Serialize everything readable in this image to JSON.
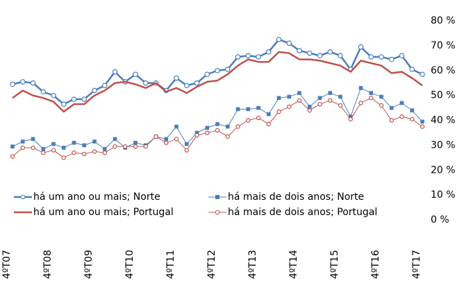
{
  "chart_data": {
    "type": "line",
    "categories": [
      "4ºT07",
      null,
      null,
      null,
      "4ºT08",
      null,
      null,
      null,
      "4ºT09",
      null,
      null,
      null,
      "4ºT10",
      null,
      null,
      null,
      "4ºT11",
      null,
      null,
      null,
      "4ºT12",
      null,
      null,
      null,
      "4ºT13",
      null,
      null,
      null,
      "4ºT14",
      null,
      null,
      null,
      "4ºT15",
      null,
      null,
      null,
      "4ºT16",
      null,
      null,
      null,
      "4ºT17"
    ],
    "series": [
      {
        "name": "há um ano ou mais; Norte",
        "color": "#4a7ebb",
        "marker": "circle",
        "line_width": 2.5,
        "values": [
          54.5,
          55.5,
          55,
          51.5,
          50,
          46.5,
          48.5,
          48.5,
          52,
          54,
          59.5,
          55.5,
          58.5,
          55,
          55,
          52,
          57,
          54,
          55,
          58.5,
          60,
          60.5,
          65.5,
          66,
          65.5,
          67.5,
          72.5,
          71,
          68,
          67,
          66,
          67.5,
          66,
          60.5,
          69.5,
          65.5,
          65.5,
          64.5,
          66,
          60.5,
          58.5
        ]
      },
      {
        "name": "há mais de dois anos; Norte",
        "color": "#4a7ebb",
        "marker": "square",
        "line_width": 1,
        "values": [
          29.5,
          31.5,
          32.5,
          28.5,
          30.5,
          29,
          31,
          30,
          31.5,
          28.5,
          32.5,
          29,
          31,
          30,
          33.5,
          32.5,
          37.5,
          30.5,
          35,
          37,
          38.5,
          37.5,
          44.5,
          44.5,
          45,
          42.5,
          49,
          49.5,
          51,
          45.5,
          49,
          51,
          49.5,
          41.5,
          53,
          51,
          49.5,
          45,
          47,
          44,
          39.5
        ]
      },
      {
        "name": "há um ano ou mais; Portugal",
        "color": "#c0504d",
        "marker": "none",
        "line_width": 2.5,
        "values": [
          49,
          52,
          50,
          49,
          47.5,
          43.5,
          46.5,
          46.5,
          50,
          52,
          55,
          55.5,
          54.5,
          53,
          55,
          51.5,
          53,
          51,
          53.5,
          55.5,
          56,
          58.5,
          62,
          64.5,
          63.5,
          63.5,
          67.5,
          67,
          64.5,
          64.5,
          64,
          63,
          62,
          59.5,
          64,
          63,
          62,
          59,
          59.5,
          57,
          54
        ]
      },
      {
        "name": "há mais de dois anos; Portugal",
        "color": "#c0504d",
        "marker": "circle",
        "line_width": 1,
        "values": [
          25.5,
          29,
          29,
          27,
          28,
          25,
          27,
          26.5,
          27.5,
          27,
          29.5,
          29.5,
          29.5,
          29.5,
          33.5,
          31,
          32.5,
          28,
          34,
          35,
          36,
          33.5,
          37.5,
          40,
          41,
          38.5,
          43.5,
          45.5,
          48,
          44,
          46.5,
          48,
          46,
          40.5,
          47,
          49,
          46,
          40,
          41.5,
          40.5,
          37.5
        ]
      }
    ],
    "ylim": [
      0,
      80
    ],
    "yticks": [
      {
        "value": 0,
        "label": "0 %"
      },
      {
        "value": 10,
        "label": "10 %"
      },
      {
        "value": 20,
        "label": "20 %"
      },
      {
        "value": 30,
        "label": "30 %"
      },
      {
        "value": 40,
        "label": "40 %"
      },
      {
        "value": 50,
        "label": "50 %"
      },
      {
        "value": 60,
        "label": "60 %"
      },
      {
        "value": 70,
        "label": "70 %"
      },
      {
        "value": 80,
        "label": "80 %"
      }
    ],
    "grid": false
  }
}
